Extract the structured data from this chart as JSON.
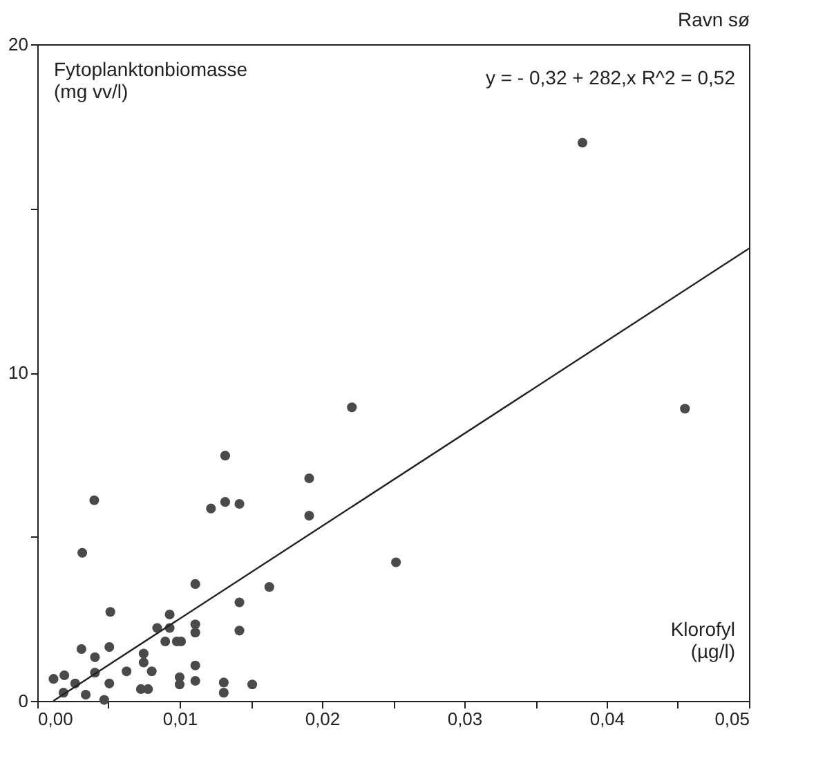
{
  "chart_data": {
    "type": "scatter",
    "title": "Ravn sø",
    "xlabel": "Klorofyl\n(µg/l)",
    "ylabel": "Fytoplanktonbiomasse\n(mg vv/l)",
    "annotations": [
      "y =  - 0,32 + 282,x   R^2 = 0,52"
    ],
    "series": [
      {
        "color": "#4a4a4a",
        "x": [
          0.00114,
          0.0019,
          0.00184,
          0.00266,
          0.0034,
          0.0047,
          0.0031,
          0.00405,
          0.00405,
          0.00506,
          0.00506,
          0.00513,
          0.00316,
          0.004,
          0.00627,
          0.00747,
          0.00747,
          0.00804,
          0.00728,
          0.00778,
          0.00842,
          0.00899,
          0.0093,
          0.0093,
          0.0098,
          0.0101,
          0.01,
          0.01,
          0.0111,
          0.0111,
          0.0111,
          0.0111,
          0.0111,
          0.0122,
          0.0132,
          0.0132,
          0.0142,
          0.0131,
          0.0131,
          0.0142,
          0.0142,
          0.0151,
          0.0163,
          0.0191,
          0.0191,
          0.0221,
          0.0252,
          0.0383,
          0.0455
        ],
        "values": [
          0.67,
          0.78,
          0.25,
          0.53,
          0.19,
          0.03,
          1.58,
          1.33,
          0.86,
          1.64,
          0.53,
          2.71,
          4.51,
          6.11,
          0.9,
          1.44,
          1.17,
          0.9,
          0.36,
          0.36,
          2.22,
          1.81,
          2.22,
          2.63,
          1.81,
          1.81,
          0.72,
          0.5,
          3.56,
          2.33,
          2.08,
          1.08,
          0.61,
          5.86,
          7.47,
          6.06,
          6.0,
          0.56,
          0.25,
          3.0,
          2.14,
          0.5,
          3.47,
          6.78,
          5.64,
          8.94,
          4.22,
          17.0,
          8.9
        ]
      },
      {
        "type": "line",
        "color": "#222222",
        "line_style": "solid",
        "marker": "none",
        "x": [
          0.00113,
          0.05
        ],
        "values": [
          0,
          13.78
        ]
      }
    ],
    "xlim": [
      0,
      0.05
    ],
    "ylim": [
      0,
      20
    ],
    "xticks": [
      {
        "value": 0,
        "label": "0,00"
      },
      {
        "value": 0.005,
        "label": null
      },
      {
        "value": 0.01,
        "label": "0,01"
      },
      {
        "value": 0.015,
        "label": null
      },
      {
        "value": 0.02,
        "label": "0,02"
      },
      {
        "value": 0.025,
        "label": null
      },
      {
        "value": 0.03,
        "label": "0,03"
      },
      {
        "value": 0.035,
        "label": null
      },
      {
        "value": 0.04,
        "label": "0,04"
      },
      {
        "value": 0.045,
        "label": null
      },
      {
        "value": 0.05,
        "label": "0,05"
      }
    ],
    "yticks": [
      0,
      {
        "value": 5,
        "label": null
      },
      10,
      {
        "value": 15,
        "label": null
      },
      20
    ],
    "grid": false,
    "marker": "circle"
  }
}
